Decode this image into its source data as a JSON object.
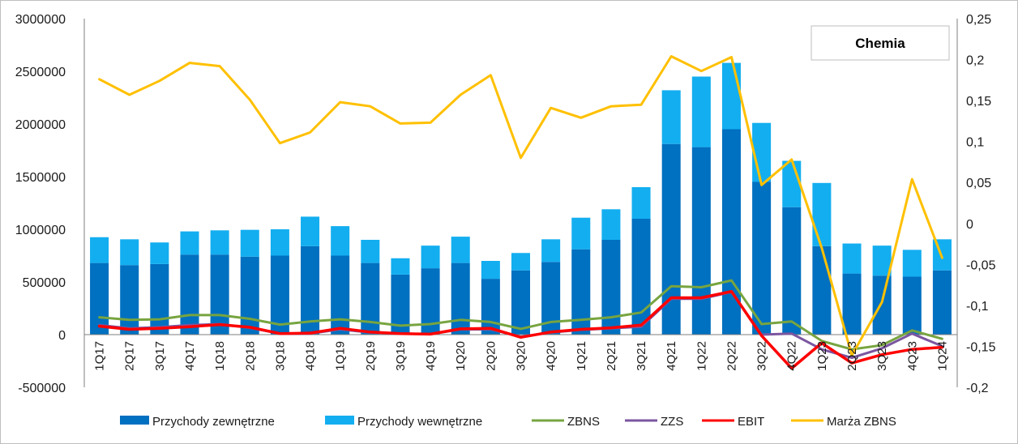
{
  "chart_data": {
    "type": "bar",
    "title": "Chemia",
    "categories": [
      "1Q17",
      "2Q17",
      "3Q17",
      "4Q17",
      "1Q18",
      "2Q18",
      "3Q18",
      "4Q18",
      "1Q19",
      "2Q19",
      "3Q19",
      "4Q19",
      "1Q20",
      "2Q20",
      "3Q20",
      "4Q20",
      "1Q21",
      "2Q21",
      "3Q21",
      "4Q21",
      "1Q22",
      "2Q22",
      "3Q22",
      "4Q22",
      "1Q23",
      "2Q23",
      "3Q23",
      "4Q23",
      "1Q24"
    ],
    "y_left": {
      "ylim": [
        -500000,
        3000000
      ],
      "ticks": [
        "3000000",
        "2500000",
        "2000000",
        "1500000",
        "1000000",
        "500000",
        "0",
        "-500000"
      ]
    },
    "y_right": {
      "ylim": [
        -0.2,
        0.25
      ],
      "ticks": [
        "0,25",
        "0,2",
        "0,15",
        "0,1",
        "0,05",
        "0",
        "-0,05",
        "-0,1",
        "-0,15",
        "-0,2"
      ]
    },
    "bar_series": [
      {
        "name": "Przychody zewnętrzne",
        "color": "#0070c0",
        "stacked": true,
        "values": [
          680000,
          660000,
          670000,
          760000,
          760000,
          740000,
          750000,
          840000,
          750000,
          680000,
          570000,
          630000,
          680000,
          530000,
          610000,
          690000,
          810000,
          900000,
          1100000,
          1810000,
          1780000,
          1950000,
          1450000,
          1210000,
          840000,
          580000,
          560000,
          550000,
          610000
        ]
      },
      {
        "name": "Przychody wewnętrzne",
        "color": "#13aef0",
        "stacked": true,
        "values": [
          245000,
          245000,
          205000,
          220000,
          230000,
          255000,
          250000,
          280000,
          280000,
          220000,
          155000,
          215000,
          250000,
          170000,
          165000,
          215000,
          300000,
          290000,
          300000,
          510000,
          670000,
          630000,
          560000,
          440000,
          600000,
          285000,
          285000,
          255000,
          295000
        ]
      }
    ],
    "line_series": [
      {
        "name": "ZBNS",
        "axis": "left",
        "color": "#77a440",
        "values": [
          165000,
          140000,
          145000,
          185000,
          185000,
          150000,
          95000,
          125000,
          145000,
          120000,
          85000,
          100000,
          140000,
          120000,
          55000,
          120000,
          140000,
          165000,
          210000,
          460000,
          450000,
          515000,
          100000,
          125000,
          -60000,
          -140000,
          -100000,
          40000,
          -40000
        ]
      },
      {
        "name": "ZZS",
        "axis": "left",
        "color": "#7b56a0",
        "values": [
          90000,
          60000,
          70000,
          90000,
          100000,
          65000,
          10000,
          10000,
          50000,
          20000,
          10000,
          5000,
          50000,
          50000,
          -20000,
          20000,
          45000,
          60000,
          75000,
          340000,
          340000,
          405000,
          0,
          10000,
          -140000,
          -220000,
          -130000,
          10000,
          -110000
        ]
      },
      {
        "name": "EBIT",
        "axis": "left",
        "color": "#ff0000",
        "values": [
          80000,
          50000,
          60000,
          75000,
          95000,
          70000,
          10000,
          15000,
          60000,
          25000,
          10000,
          5000,
          55000,
          60000,
          -25000,
          25000,
          50000,
          65000,
          90000,
          350000,
          350000,
          410000,
          -10000,
          -320000,
          -80000,
          -270000,
          -190000,
          -140000,
          -120000
        ]
      },
      {
        "name": "Marża ZBNS",
        "axis": "right",
        "color": "#ffc000",
        "values": [
          0.176,
          0.157,
          0.174,
          0.196,
          0.192,
          0.151,
          0.098,
          0.111,
          0.148,
          0.143,
          0.122,
          0.123,
          0.157,
          0.181,
          0.08,
          0.141,
          0.129,
          0.143,
          0.145,
          0.204,
          0.186,
          0.203,
          0.047,
          0.078,
          -0.03,
          -0.161,
          -0.096,
          0.054,
          -0.042
        ]
      }
    ],
    "legend_position": "bottom",
    "grid": false
  }
}
